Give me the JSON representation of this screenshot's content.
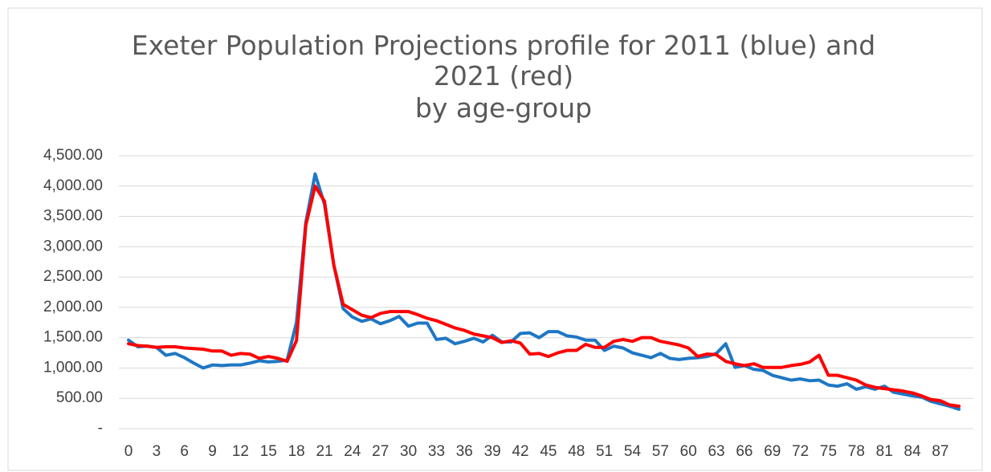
{
  "chart_data": {
    "type": "line",
    "title": [
      "Exeter Population Projections profile for 2011 (blue) and",
      "2021 (red)",
      "by age-group"
    ],
    "categories": [
      0,
      null,
      null,
      3,
      null,
      null,
      6,
      null,
      null,
      9,
      null,
      null,
      12,
      null,
      null,
      15,
      null,
      null,
      18,
      null,
      null,
      21,
      null,
      null,
      24,
      null,
      null,
      27,
      null,
      null,
      30,
      null,
      null,
      33,
      null,
      null,
      36,
      null,
      null,
      39,
      null,
      null,
      42,
      null,
      null,
      45,
      null,
      null,
      48,
      null,
      null,
      51,
      null,
      null,
      54,
      null,
      null,
      57,
      null,
      null,
      60,
      null,
      null,
      63,
      null,
      null,
      66,
      null,
      null,
      69,
      null,
      null,
      72,
      null,
      null,
      75,
      null,
      null,
      78,
      null,
      null,
      81,
      null,
      null,
      84,
      null,
      null,
      87,
      null,
      null
    ],
    "series": [
      {
        "color": "#1f77c4",
        "values": [
          1460,
          1350,
          1360,
          1340,
          1210,
          1240,
          1170,
          1080,
          1000,
          1050,
          1040,
          1050,
          1050,
          1080,
          1120,
          1100,
          1110,
          1130,
          1750,
          3400,
          4200,
          3700,
          2700,
          1980,
          1840,
          1770,
          1810,
          1730,
          1780,
          1850,
          1690,
          1740,
          1740,
          1470,
          1490,
          1400,
          1440,
          1490,
          1430,
          1540,
          1430,
          1430,
          1570,
          1580,
          1500,
          1600,
          1600,
          1530,
          1510,
          1460,
          1460,
          1290,
          1360,
          1330,
          1250,
          1210,
          1170,
          1240,
          1160,
          1140,
          1160,
          1170,
          1190,
          1240,
          1400,
          1010,
          1040,
          980,
          960,
          880,
          840,
          800,
          820,
          790,
          800,
          720,
          700,
          740,
          650,
          690,
          650,
          700,
          600,
          570,
          540,
          520,
          450,
          410,
          370,
          320
        ]
      },
      {
        "color": "#ff0000",
        "values": [
          1400,
          1370,
          1360,
          1340,
          1350,
          1350,
          1330,
          1320,
          1310,
          1280,
          1280,
          1210,
          1240,
          1230,
          1160,
          1190,
          1160,
          1110,
          1450,
          3350,
          4000,
          3750,
          2700,
          2050,
          1960,
          1870,
          1830,
          1900,
          1930,
          1930,
          1930,
          1880,
          1820,
          1780,
          1720,
          1660,
          1620,
          1560,
          1530,
          1500,
          1420,
          1450,
          1410,
          1230,
          1240,
          1190,
          1250,
          1290,
          1290,
          1390,
          1340,
          1340,
          1440,
          1470,
          1440,
          1500,
          1500,
          1440,
          1410,
          1380,
          1330,
          1190,
          1230,
          1220,
          1110,
          1070,
          1040,
          1070,
          1010,
          1010,
          1010,
          1040,
          1060,
          1100,
          1210,
          880,
          880,
          840,
          800,
          720,
          680,
          660,
          640,
          620,
          590,
          540,
          480,
          460,
          390,
          370
        ]
      }
    ],
    "ylim": [
      0,
      4500
    ],
    "yticks": [
      {
        "value": 0,
        "label": "-"
      },
      {
        "value": 500,
        "label": "500.00"
      },
      {
        "value": 1000,
        "label": "1,000.00"
      },
      {
        "value": 1500,
        "label": "1,500.00"
      },
      {
        "value": 2000,
        "label": "2,000.00"
      },
      {
        "value": 2500,
        "label": "2,500.00"
      },
      {
        "value": 3000,
        "label": "3,000.00"
      },
      {
        "value": 3500,
        "label": "3,500.00"
      },
      {
        "value": 4000,
        "label": "4,000.00"
      },
      {
        "value": 4500,
        "label": "4,500.00"
      }
    ],
    "grid": true
  }
}
